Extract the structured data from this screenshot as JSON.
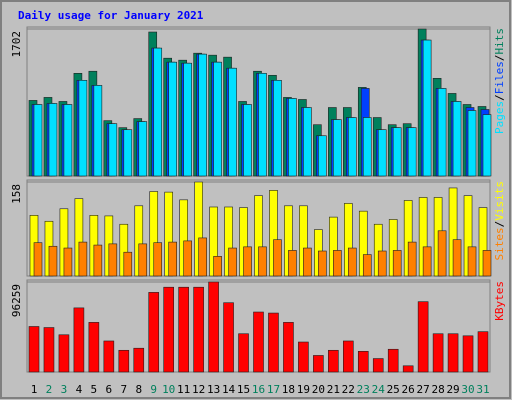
{
  "chart_data": [
    {
      "type": "bar",
      "title": "Daily usage for January 2021",
      "legend_separator": "/",
      "ylim": [
        0,
        1702
      ],
      "yticks": [
        1702
      ],
      "series": [
        {
          "name": "Hits",
          "color": "#00805c",
          "values": [
            875,
            910,
            863,
            1189,
            1213,
            641,
            560,
            665,
            1667,
            1364,
            1341,
            1422,
            1399,
            1376,
            863,
            1213,
            1166,
            910,
            886,
            594,
            793,
            793,
            1026,
            677,
            594,
            606,
            1702,
            1131,
            956,
            828,
            805
          ]
        },
        {
          "name": "Files",
          "color": "#0040ff",
          "values": [
            828,
            840,
            828,
            1108,
            1049,
            606,
            536,
            630,
            1481,
            1318,
            1306,
            1411,
            1318,
            1248,
            828,
            1189,
            1108,
            898,
            793,
            466,
            653,
            677,
            1014,
            536,
            560,
            560,
            1574,
            1014,
            863,
            793,
            770
          ]
        },
        {
          "name": "Pages",
          "color": "#00e0ff",
          "values": [
            828,
            840,
            828,
            1108,
            1049,
            606,
            536,
            630,
            1481,
            1318,
            1306,
            1411,
            1318,
            1248,
            828,
            1189,
            1108,
            898,
            793,
            466,
            653,
            677,
            677,
            536,
            560,
            560,
            1574,
            1014,
            863,
            758,
            711
          ]
        }
      ]
    },
    {
      "type": "bar",
      "ylim": [
        0,
        158
      ],
      "yticks": [
        158
      ],
      "series": [
        {
          "name": "Visits",
          "color": "#ffff00",
          "values": [
            102,
            92,
            113,
            130,
            102,
            101,
            87,
            118,
            142,
            141,
            128,
            158,
            116,
            116,
            115,
            135,
            144,
            118,
            118,
            78,
            99,
            122,
            109,
            87,
            95,
            127,
            132,
            132,
            148,
            135,
            115
          ]
        },
        {
          "name": "Sites",
          "color": "#ff8000",
          "values": [
            56,
            50,
            47,
            57,
            52,
            54,
            40,
            54,
            56,
            57,
            59,
            64,
            33,
            47,
            49,
            49,
            61,
            43,
            47,
            42,
            43,
            47,
            36,
            42,
            43,
            57,
            49,
            76,
            61,
            49,
            43
          ]
        }
      ]
    },
    {
      "type": "bar",
      "ylim": [
        0,
        96259
      ],
      "yticks": [
        96259
      ],
      "categories": [
        "1",
        "2",
        "3",
        "4",
        "5",
        "6",
        "7",
        "8",
        "9",
        "10",
        "11",
        "12",
        "13",
        "14",
        "15",
        "16",
        "17",
        "18",
        "19",
        "20",
        "21",
        "22",
        "23",
        "24",
        "25",
        "26",
        "27",
        "28",
        "29",
        "30",
        "31"
      ],
      "category_colors": [
        "#000000",
        "#00805c",
        "#00805c",
        "#000000",
        "#000000",
        "#000000",
        "#000000",
        "#000000",
        "#00805c",
        "#00805c",
        "#000000",
        "#000000",
        "#000000",
        "#000000",
        "#000000",
        "#00805c",
        "#00805c",
        "#000000",
        "#000000",
        "#000000",
        "#000000",
        "#000000",
        "#00805c",
        "#00805c",
        "#000000",
        "#000000",
        "#000000",
        "#000000",
        "#000000",
        "#00805c",
        "#00805c"
      ],
      "series": [
        {
          "name": "KBytes",
          "color": "#ff0000",
          "values": [
            48664,
            47558,
            39816,
            68572,
            53088,
            33180,
            23226,
            25438,
            85162,
            90692,
            90692,
            90692,
            96259,
            74102,
            40922,
            64148,
            63042,
            53088,
            32074,
            17696,
            23226,
            33180,
            22120,
            14378,
            24332,
            6636,
            75208,
            40922,
            40922,
            38710,
            43134
          ]
        }
      ]
    }
  ]
}
